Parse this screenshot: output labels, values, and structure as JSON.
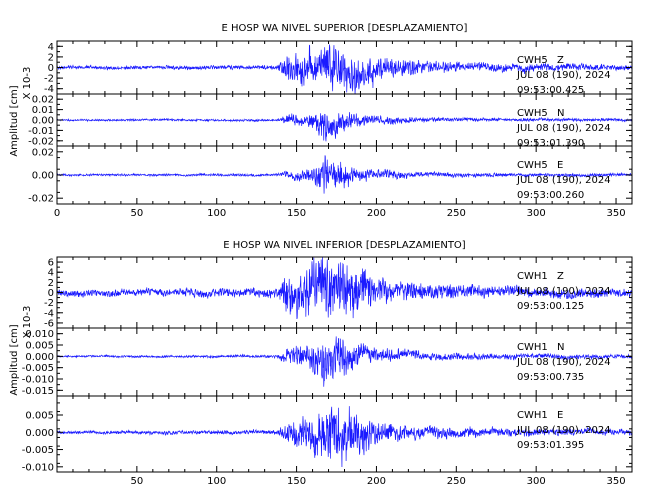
{
  "colors": {
    "trace": "#1a1aff",
    "axis": "#000000",
    "background": "#ffffff"
  },
  "chart_data": [
    {
      "type": "line",
      "title": "E HOSP WA NIVEL SUPERIOR [DESPLAZAMIENTO]",
      "ylabel": "Amplitud [cm]",
      "xlabel": "",
      "xlim": [
        0,
        360
      ],
      "x_ticks": [
        0,
        50,
        100,
        150,
        200,
        250,
        300,
        350
      ],
      "x_tick_labels": [
        "0",
        "50",
        "100",
        "150",
        "200",
        "250",
        "300",
        "350"
      ],
      "panels": [
        {
          "station": "CWH5",
          "component": "Z",
          "date": "JUL 08 (190), 2024",
          "time": "09:53:00.425",
          "scale_label": "X 10-3",
          "ylim": [
            -5,
            5
          ],
          "y_ticks": [
            -4,
            -2,
            0,
            2,
            4
          ],
          "y_tick_labels": [
            "-4",
            "-2",
            "0",
            "2",
            "4"
          ],
          "trace": {
            "base_amplitude": 0.3,
            "envelope": [
              [
                0,
                0.3
              ],
              [
                138,
                0.4
              ],
              [
                143,
                2.5
              ],
              [
                160,
                3.5
              ],
              [
                170,
                4.6
              ],
              [
                180,
                4.2
              ],
              [
                190,
                3.5
              ],
              [
                200,
                2.2
              ],
              [
                220,
                1.4
              ],
              [
                250,
                0.9
              ],
              [
                300,
                0.7
              ],
              [
                360,
                0.5
              ]
            ],
            "offset": 0,
            "seed": 11
          }
        },
        {
          "station": "CWH5",
          "component": "N",
          "date": "JUL 08 (190), 2024",
          "time": "09:53:01.390",
          "scale_label": "",
          "ylim": [
            -0.025,
            0.025
          ],
          "y_ticks": [
            -0.02,
            -0.01,
            0.0,
            0.01,
            0.02
          ],
          "y_tick_labels": [
            "-0.02",
            "-0.01",
            "0.00",
            "0.01",
            "0.02"
          ],
          "trace": {
            "base_amplitude": 0.0008,
            "envelope": [
              [
                0,
                0.0008
              ],
              [
                138,
                0.001
              ],
              [
                143,
                0.004
              ],
              [
                160,
                0.007
              ],
              [
                167,
                0.016
              ],
              [
                175,
                0.01
              ],
              [
                185,
                0.007
              ],
              [
                200,
                0.004
              ],
              [
                230,
                0.002
              ],
              [
                280,
                0.0015
              ],
              [
                360,
                0.0012
              ]
            ],
            "offset": 0,
            "seed": 23
          }
        },
        {
          "station": "CWH5",
          "component": "E",
          "date": "JUL 08 (190), 2024",
          "time": "09:53:00.260",
          "scale_label": "",
          "ylim": [
            -0.025,
            0.025
          ],
          "y_ticks": [
            -0.02,
            0.0,
            0.02
          ],
          "y_tick_labels": [
            "-0.02",
            "0.00",
            "0.02"
          ],
          "trace": {
            "base_amplitude": 0.0008,
            "envelope": [
              [
                0,
                0.0008
              ],
              [
                138,
                0.001
              ],
              [
                143,
                0.003
              ],
              [
                160,
                0.006
              ],
              [
                168,
                0.018
              ],
              [
                176,
                0.012
              ],
              [
                185,
                0.008
              ],
              [
                200,
                0.004
              ],
              [
                230,
                0.002
              ],
              [
                280,
                0.0015
              ],
              [
                360,
                0.0012
              ]
            ],
            "offset": 0,
            "seed": 37
          }
        }
      ]
    },
    {
      "type": "line",
      "title": "E HOSP WA NIVEL INFERIOR [DESPLAZAMIENTO]",
      "ylabel": "Amplitud [cm]",
      "xlabel": "",
      "xlim": [
        0,
        360
      ],
      "x_ticks": [
        50,
        100,
        150,
        200,
        250,
        300,
        350
      ],
      "x_tick_labels": [
        "50",
        "100",
        "150",
        "200",
        "250",
        "300",
        "350"
      ],
      "panels": [
        {
          "station": "CWH1",
          "component": "Z",
          "date": "JUL 08 (190), 2024",
          "time": "09:53:00.125",
          "scale_label": "X 10-3",
          "ylim": [
            -7,
            7
          ],
          "y_ticks": [
            -6,
            -4,
            -2,
            0,
            2,
            4,
            6
          ],
          "y_tick_labels": [
            "-6",
            "-4",
            "-2",
            "0",
            "2",
            "4",
            "6"
          ],
          "trace": {
            "base_amplitude": 0.6,
            "envelope": [
              [
                0,
                0.6
              ],
              [
                138,
                0.9
              ],
              [
                143,
                3.5
              ],
              [
                160,
                5.0
              ],
              [
                170,
                6.2
              ],
              [
                180,
                5.5
              ],
              [
                190,
                4.5
              ],
              [
                200,
                2.5
              ],
              [
                220,
                1.8
              ],
              [
                250,
                1.3
              ],
              [
                300,
                1.0
              ],
              [
                360,
                0.8
              ]
            ],
            "offset": 0,
            "seed": 53
          }
        },
        {
          "station": "CWH1",
          "component": "N",
          "date": "JUL 08 (190), 2024",
          "time": "09:53:00.735",
          "scale_label": "",
          "ylim": [
            -0.0175,
            0.0125
          ],
          "y_ticks": [
            -0.015,
            -0.01,
            -0.005,
            0.0,
            0.005,
            0.01
          ],
          "y_tick_labels": [
            "-0.015",
            "-0.010",
            "-0.005",
            "0.000",
            "0.005",
            "0.010"
          ],
          "trace": {
            "base_amplitude": 0.0004,
            "envelope": [
              [
                0,
                0.0004
              ],
              [
                138,
                0.0006
              ],
              [
                143,
                0.003
              ],
              [
                160,
                0.006
              ],
              [
                168,
                0.011
              ],
              [
                178,
                0.008
              ],
              [
                190,
                0.005
              ],
              [
                200,
                0.003
              ],
              [
                230,
                0.0018
              ],
              [
                280,
                0.0012
              ],
              [
                360,
                0.0008
              ]
            ],
            "offset": 0,
            "seed": 71
          }
        },
        {
          "station": "CWH1",
          "component": "E",
          "date": "JUL 08 (190), 2024",
          "time": "09:53:01.395",
          "scale_label": "",
          "ylim": [
            -0.0115,
            0.0105
          ],
          "y_ticks": [
            -0.01,
            -0.005,
            0.0,
            0.005
          ],
          "y_tick_labels": [
            "-0.010",
            "-0.005",
            "0.000",
            "0.005"
          ],
          "trace": {
            "base_amplitude": 0.0004,
            "envelope": [
              [
                0,
                0.0004
              ],
              [
                138,
                0.0006
              ],
              [
                143,
                0.003
              ],
              [
                160,
                0.005
              ],
              [
                172,
                0.0095
              ],
              [
                182,
                0.008
              ],
              [
                192,
                0.005
              ],
              [
                200,
                0.003
              ],
              [
                230,
                0.0018
              ],
              [
                280,
                0.0012
              ],
              [
                360,
                0.0008
              ]
            ],
            "offset": 0,
            "seed": 89
          }
        }
      ]
    }
  ]
}
